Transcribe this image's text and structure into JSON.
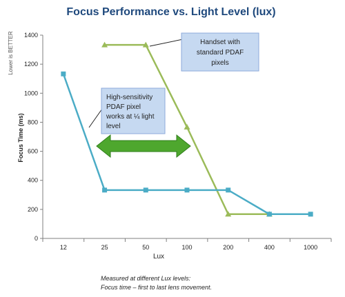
{
  "chart_data": {
    "type": "line",
    "title": "Focus Performance vs. Light Level (lux)",
    "xlabel": "Lux",
    "ylabel": "Focus Time (ms)",
    "ylabel_note": "Lower is BETTER",
    "categories": [
      "12",
      "25",
      "50",
      "100",
      "200",
      "400",
      "1000"
    ],
    "ylim": [
      0,
      1400
    ],
    "yticks": [
      "0",
      "200",
      "400",
      "600",
      "800",
      "1000",
      "1200",
      "1400"
    ],
    "grid": false,
    "series": [
      {
        "key": "green",
        "color": "#9bbb59",
        "marker": "triangle",
        "values": [
          null,
          1333,
          1333,
          767,
          167,
          167,
          null
        ]
      },
      {
        "key": "blue",
        "color": "#4bacc6",
        "marker": "square",
        "values": [
          1133,
          333,
          333,
          333,
          333,
          167,
          167
        ]
      }
    ],
    "annotations": {
      "handset": {
        "lines": [
          "Handset with",
          "standard PDAF",
          "pixels"
        ]
      },
      "high_sensitivity": {
        "lines": [
          "High-sensitivity",
          "PDAF pixel",
          "works at ¼ light",
          "level"
        ]
      }
    },
    "footnote": [
      "Measured at different Lux levels:",
      "Focus time – first to last lens movement."
    ],
    "colors": {
      "title": "#1f497d",
      "callout_fill": "#c6d9f1",
      "arrow_fill": "#4ea72e",
      "axis": "#7f7f7f"
    }
  }
}
